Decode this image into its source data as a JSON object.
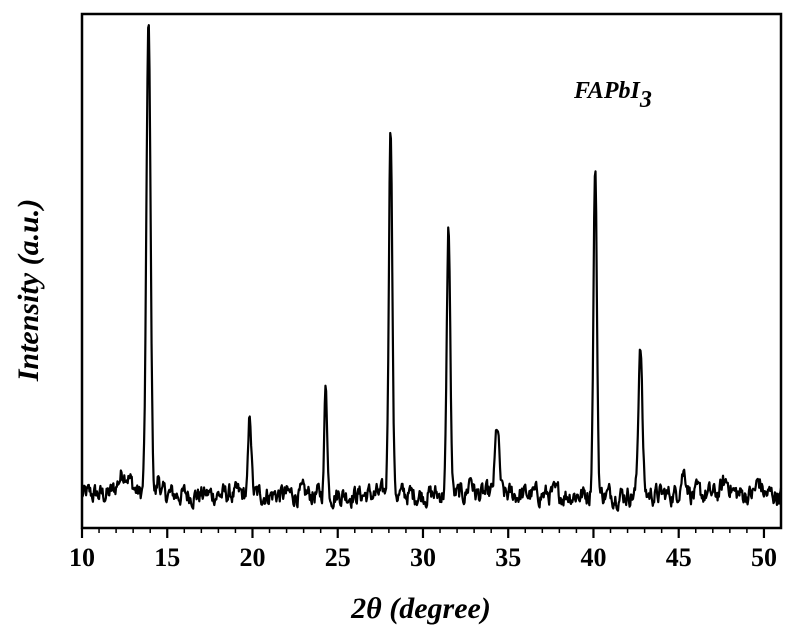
{
  "chart_data": {
    "type": "line",
    "title": "",
    "xlabel": "2θ (degree)",
    "ylabel": "Intensity (a.u.)",
    "xlim": [
      10,
      51
    ],
    "ylim": [
      0,
      100
    ],
    "xticks": [
      10,
      15,
      20,
      25,
      30,
      35,
      40,
      45,
      50
    ],
    "yticks": [],
    "grid": false,
    "legend": "none",
    "annotation": {
      "text": "FAPbI",
      "subscript": "3"
    },
    "line_color": "#000000",
    "baseline": 6.5,
    "series": [
      {
        "peaks": [
          [
            12.5,
            4.5,
            0.35
          ],
          [
            13.9,
            92,
            0.12
          ],
          [
            14.5,
            3.5,
            0.08
          ],
          [
            19.85,
            15,
            0.09
          ],
          [
            24.3,
            22,
            0.08
          ],
          [
            28.1,
            73,
            0.1
          ],
          [
            31.5,
            52,
            0.1
          ],
          [
            32.8,
            3.5,
            0.12
          ],
          [
            34.35,
            13,
            0.12
          ],
          [
            40.1,
            64,
            0.1
          ],
          [
            42.75,
            30,
            0.11
          ],
          [
            45.3,
            4.5,
            0.18
          ],
          [
            47.8,
            2.5,
            0.25
          ],
          [
            49.7,
            2.5,
            0.15
          ]
        ],
        "note_peak_format": "[2θ, intensity, width]"
      }
    ]
  }
}
